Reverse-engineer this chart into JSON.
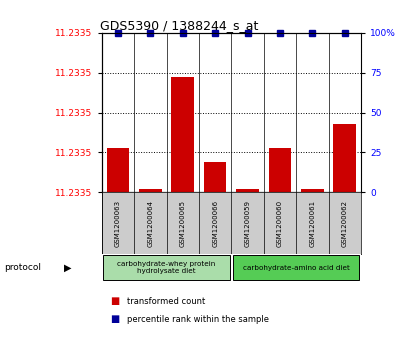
{
  "title": "GDS5390 / 1388244_s_at",
  "samples": [
    "GSM1200063",
    "GSM1200064",
    "GSM1200065",
    "GSM1200066",
    "GSM1200059",
    "GSM1200060",
    "GSM1200061",
    "GSM1200062"
  ],
  "bar_heights": [
    0.28,
    0.02,
    0.72,
    0.19,
    0.02,
    0.28,
    0.02,
    0.43
  ],
  "percentile_ranks": [
    1.0,
    1.0,
    1.0,
    1.0,
    1.0,
    1.0,
    1.0,
    1.0
  ],
  "ytick_values": [
    0.0,
    0.25,
    0.5,
    0.75,
    1.0
  ],
  "ytick_labels": [
    "11.2335",
    "11.2335",
    "11.2335",
    "11.2335",
    "11.2335"
  ],
  "right_ytick_values": [
    0.0,
    0.25,
    0.5,
    0.75,
    1.0
  ],
  "right_ytick_labels": [
    "0",
    "25",
    "50",
    "75",
    "100%"
  ],
  "bar_color": "#cc0000",
  "dot_color": "#000099",
  "protocol_groups": [
    {
      "label": "carbohydrate-whey protein\nhydrolysate diet",
      "start": 0,
      "end": 4,
      "color": "#aaddaa"
    },
    {
      "label": "carbohydrate-amino acid diet",
      "start": 4,
      "end": 8,
      "color": "#55cc55"
    }
  ],
  "legend_items": [
    {
      "color": "#cc0000",
      "label": "transformed count"
    },
    {
      "color": "#000099",
      "label": "percentile rank within the sample"
    }
  ],
  "protocol_label": "protocol",
  "sample_bg_color": "#cccccc",
  "plot_bg_color": "#ffffff"
}
